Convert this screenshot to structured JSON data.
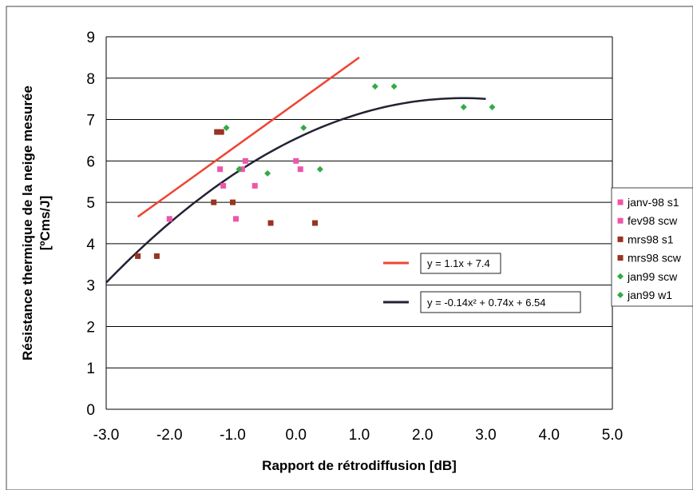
{
  "chart_data": {
    "type": "scatter",
    "title": "",
    "xlabel": "Rapport de rétrodiffusion [dB]",
    "ylabel_line1": "Résistance thermique de la neige mesurée",
    "ylabel_line2": "[ºCms/J]",
    "xlim": [
      -3.0,
      5.0
    ],
    "ylim": [
      0,
      9
    ],
    "x_ticks": [
      "-3.0",
      "-2.0",
      "-1.0",
      "0.0",
      "1.0",
      "2.0",
      "3.0",
      "4.0",
      "5.0"
    ],
    "y_ticks": [
      "0",
      "1",
      "2",
      "3",
      "4",
      "5",
      "6",
      "7",
      "8",
      "9"
    ],
    "grid": "horizontal",
    "legend_position": "right",
    "series": [
      {
        "name": "janv-98 s1",
        "marker": "square",
        "color": "#ee55aa",
        "points": [
          [
            -2.0,
            4.6
          ],
          [
            -1.2,
            5.8
          ],
          [
            -1.15,
            5.4
          ],
          [
            -0.95,
            4.6
          ],
          [
            -0.8,
            6.0
          ],
          [
            -0.65,
            5.4
          ]
        ]
      },
      {
        "name": "fev98 scw",
        "marker": "square",
        "color": "#ee55aa",
        "points": [
          [
            -0.85,
            5.8
          ],
          [
            0.0,
            6.0
          ],
          [
            0.07,
            5.8
          ]
        ]
      },
      {
        "name": "mrs98 s1",
        "marker": "square",
        "color": "#993322",
        "points": [
          [
            -2.5,
            3.7
          ],
          [
            -2.2,
            3.7
          ],
          [
            -1.3,
            5.0
          ],
          [
            -1.0,
            5.0
          ],
          [
            -1.25,
            6.7
          ]
        ]
      },
      {
        "name": "mrs98 scw",
        "marker": "square",
        "color": "#993322",
        "points": [
          [
            -1.18,
            6.7
          ],
          [
            -0.4,
            4.5
          ],
          [
            0.3,
            4.5
          ]
        ]
      },
      {
        "name": "jan99 scw",
        "marker": "diamond",
        "color": "#33aa44",
        "points": [
          [
            -1.1,
            6.8
          ],
          [
            -0.9,
            5.8
          ],
          [
            -0.45,
            5.7
          ],
          [
            0.12,
            6.8
          ],
          [
            0.38,
            5.8
          ]
        ]
      },
      {
        "name": "jan99 w1",
        "marker": "diamond",
        "color": "#33aa44",
        "points": [
          [
            1.25,
            7.8
          ],
          [
            1.55,
            7.8
          ],
          [
            2.65,
            7.3
          ],
          [
            3.1,
            7.3
          ]
        ]
      }
    ],
    "trendlines": [
      {
        "label": "y = 1.1x + 7.4",
        "color": "#ee4433",
        "kind": "linear",
        "coef": [
          1.1,
          7.4
        ],
        "x_range": [
          -2.5,
          1.0
        ]
      },
      {
        "label": "y = -0.14x² + 0.74x + 6.54",
        "color": "#222233",
        "kind": "poly2",
        "coef": [
          -0.14,
          0.74,
          6.54
        ],
        "x_range": [
          -3.0,
          3.0
        ]
      }
    ],
    "legend_entries": [
      "janv-98 s1",
      "fev98 scw",
      "mrs98 s1",
      "mrs98 scw",
      "jan99 scw",
      "jan99 w1"
    ]
  }
}
